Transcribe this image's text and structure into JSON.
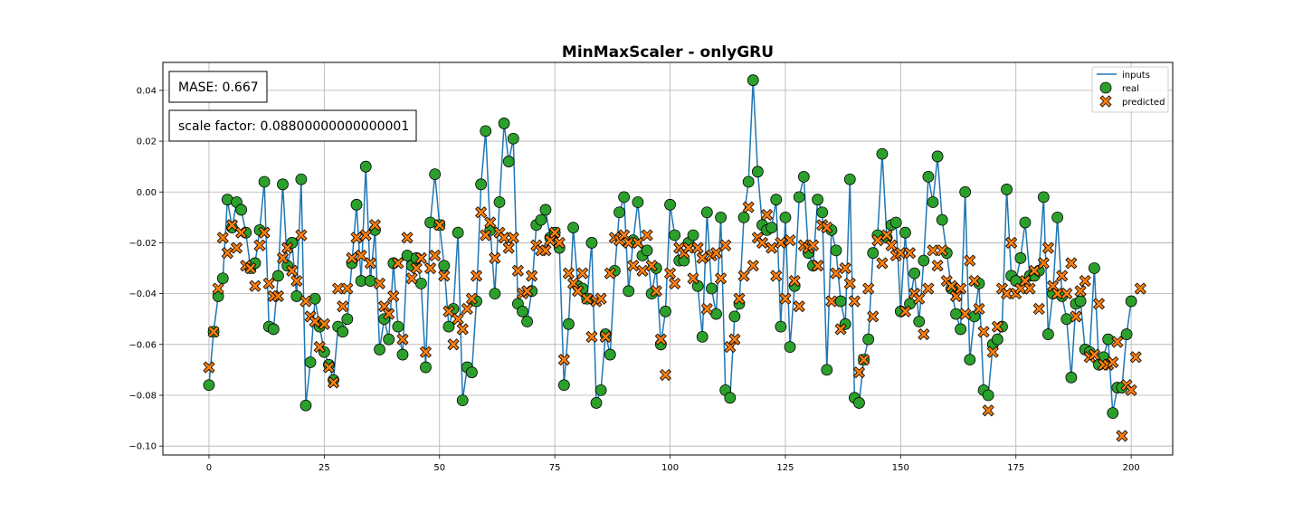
{
  "chart_data": {
    "type": "scatter",
    "title": "MinMaxScaler - onlyGRU",
    "xlim": [
      -10,
      209
    ],
    "ylim": [
      -0.1035,
      0.051
    ],
    "xticks": [
      0,
      25,
      50,
      75,
      100,
      125,
      150,
      175,
      200
    ],
    "yticks": [
      0.04,
      0.02,
      0.0,
      -0.02,
      -0.04,
      -0.06,
      -0.08,
      -0.1
    ],
    "ytick_labels": [
      "0.04",
      "0.02",
      "0.00",
      "−0.02",
      "−0.04",
      "−0.06",
      "−0.08",
      "−0.10"
    ],
    "grid": true,
    "legend_position": "top-right",
    "legend": [
      "inputs",
      "real",
      "predicted"
    ],
    "annotations": [
      "MASE: 0.667",
      "scale factor: 0.08800000000000001"
    ],
    "colors": {
      "inputs": "#1f77b4",
      "real": "#2ca02c",
      "predicted": "#ff7f0e"
    },
    "real": [
      -0.076,
      -0.055,
      -0.041,
      -0.034,
      -0.003,
      -0.014,
      -0.004,
      -0.007,
      -0.016,
      -0.03,
      -0.028,
      -0.015,
      0.004,
      -0.053,
      -0.054,
      -0.033,
      0.003,
      -0.029,
      -0.02,
      -0.041,
      0.005,
      -0.084,
      -0.067,
      -0.042,
      -0.053,
      -0.063,
      -0.068,
      -0.074,
      -0.053,
      -0.055,
      -0.05,
      -0.028,
      -0.005,
      -0.035,
      0.01,
      -0.035,
      -0.015,
      -0.062,
      -0.05,
      -0.058,
      -0.028,
      -0.053,
      -0.064,
      -0.025,
      -0.029,
      -0.026,
      -0.036,
      -0.069,
      -0.012,
      0.007,
      -0.013,
      -0.029,
      -0.053,
      -0.046,
      -0.016,
      -0.082,
      -0.069,
      -0.071,
      -0.043,
      0.003,
      0.024,
      -0.015,
      -0.04,
      -0.004,
      0.027,
      0.012,
      0.021,
      -0.044,
      -0.047,
      -0.051,
      -0.039,
      -0.013,
      -0.011,
      -0.007,
      -0.018,
      -0.016,
      -0.022,
      -0.076,
      -0.052,
      -0.014,
      -0.037,
      -0.038,
      -0.042,
      -0.02,
      -0.083,
      -0.078,
      -0.056,
      -0.064,
      -0.031,
      -0.008,
      -0.002,
      -0.039,
      -0.019,
      -0.004,
      -0.025,
      -0.023,
      -0.04,
      -0.03,
      -0.06,
      -0.047,
      -0.005,
      -0.017,
      -0.027,
      -0.027,
      -0.02,
      -0.017,
      -0.037,
      -0.057,
      -0.008,
      -0.038,
      -0.048,
      -0.01,
      -0.078,
      -0.081,
      -0.049,
      -0.044,
      -0.01,
      0.004,
      0.044,
      0.008,
      -0.013,
      -0.015,
      -0.014,
      -0.003,
      -0.053,
      -0.01,
      -0.061,
      -0.037,
      -0.002,
      0.006,
      -0.024,
      -0.029,
      -0.003,
      -0.008,
      -0.07,
      -0.015,
      -0.023,
      -0.043,
      -0.052,
      0.005,
      -0.081,
      -0.083,
      -0.066,
      -0.058,
      -0.024,
      -0.017,
      0.015,
      -0.018,
      -0.013,
      -0.012,
      -0.047,
      -0.016,
      -0.044,
      -0.032,
      -0.051,
      -0.027,
      0.006,
      -0.004,
      0.014,
      -0.011,
      -0.024,
      -0.038,
      -0.048,
      -0.054,
      0.0,
      -0.066,
      -0.049,
      -0.036,
      -0.078,
      -0.08,
      -0.06,
      -0.058,
      -0.053,
      0.001,
      -0.033,
      -0.035,
      -0.026,
      -0.012,
      -0.033,
      -0.033,
      -0.031,
      -0.002,
      -0.056,
      -0.04,
      -0.01,
      -0.041,
      -0.05,
      -0.073,
      -0.044,
      -0.043,
      -0.062,
      -0.063,
      -0.03,
      -0.068,
      -0.065,
      -0.058,
      -0.087,
      -0.077,
      -0.077,
      -0.056,
      -0.043
    ],
    "predicted": [
      -0.069,
      -0.055,
      -0.038,
      -0.018,
      -0.024,
      -0.013,
      -0.022,
      -0.016,
      -0.029,
      -0.03,
      -0.037,
      -0.021,
      -0.016,
      -0.036,
      -0.041,
      -0.041,
      -0.026,
      -0.022,
      -0.031,
      -0.035,
      -0.017,
      -0.043,
      -0.049,
      -0.051,
      -0.061,
      -0.052,
      -0.069,
      -0.075,
      -0.038,
      -0.045,
      -0.038,
      -0.026,
      -0.018,
      -0.025,
      -0.017,
      -0.028,
      -0.013,
      -0.036,
      -0.045,
      -0.048,
      -0.041,
      -0.028,
      -0.058,
      -0.018,
      -0.034,
      -0.03,
      -0.026,
      -0.063,
      -0.03,
      -0.025,
      -0.013,
      -0.033,
      -0.047,
      -0.06,
      -0.05,
      -0.054,
      -0.046,
      -0.042,
      -0.033,
      -0.008,
      -0.017,
      -0.012,
      -0.026,
      -0.016,
      -0.018,
      -0.022,
      -0.018,
      -0.031,
      -0.04,
      -0.039,
      -0.033,
      -0.021,
      -0.023,
      -0.023,
      -0.019,
      -0.016,
      -0.02,
      -0.066,
      -0.032,
      -0.036,
      -0.039,
      -0.032,
      -0.042,
      -0.057,
      -0.043,
      -0.042,
      -0.057,
      -0.032,
      -0.018,
      -0.019,
      -0.017,
      -0.02,
      -0.029,
      -0.02,
      -0.031,
      -0.017,
      -0.029,
      -0.039,
      -0.058,
      -0.072,
      -0.032,
      -0.036,
      -0.022,
      -0.024,
      -0.022,
      -0.034,
      -0.022,
      -0.026,
      -0.046,
      -0.025,
      -0.024,
      -0.034,
      -0.021,
      -0.061,
      -0.058,
      -0.042,
      -0.033,
      -0.006,
      -0.029,
      -0.018,
      -0.02,
      -0.009,
      -0.022,
      -0.033,
      -0.02,
      -0.042,
      -0.019,
      -0.035,
      -0.045,
      -0.021,
      -0.022,
      -0.021,
      -0.029,
      -0.013,
      -0.014,
      -0.043,
      -0.032,
      -0.054,
      -0.03,
      -0.036,
      -0.043,
      -0.071,
      -0.066,
      -0.038,
      -0.049,
      -0.019,
      -0.028,
      -0.017,
      -0.021,
      -0.025,
      -0.024,
      -0.047,
      -0.024,
      -0.04,
      -0.042,
      -0.056,
      -0.038,
      -0.023,
      -0.029,
      -0.023,
      -0.035,
      -0.037,
      -0.041,
      -0.038,
      -0.048,
      -0.027,
      -0.035,
      -0.046,
      -0.055,
      -0.086,
      -0.063,
      -0.053,
      -0.038,
      -0.04,
      -0.02,
      -0.04,
      -0.038,
      -0.035,
      -0.038,
      -0.031,
      -0.046,
      -0.028,
      -0.022,
      -0.037,
      -0.04,
      -0.033,
      -0.04,
      -0.028,
      -0.049,
      -0.039,
      -0.035,
      -0.065,
      -0.064,
      -0.044,
      -0.068,
      -0.068,
      -0.067,
      -0.059,
      -0.096,
      -0.076,
      -0.078,
      -0.065,
      -0.038
    ]
  }
}
